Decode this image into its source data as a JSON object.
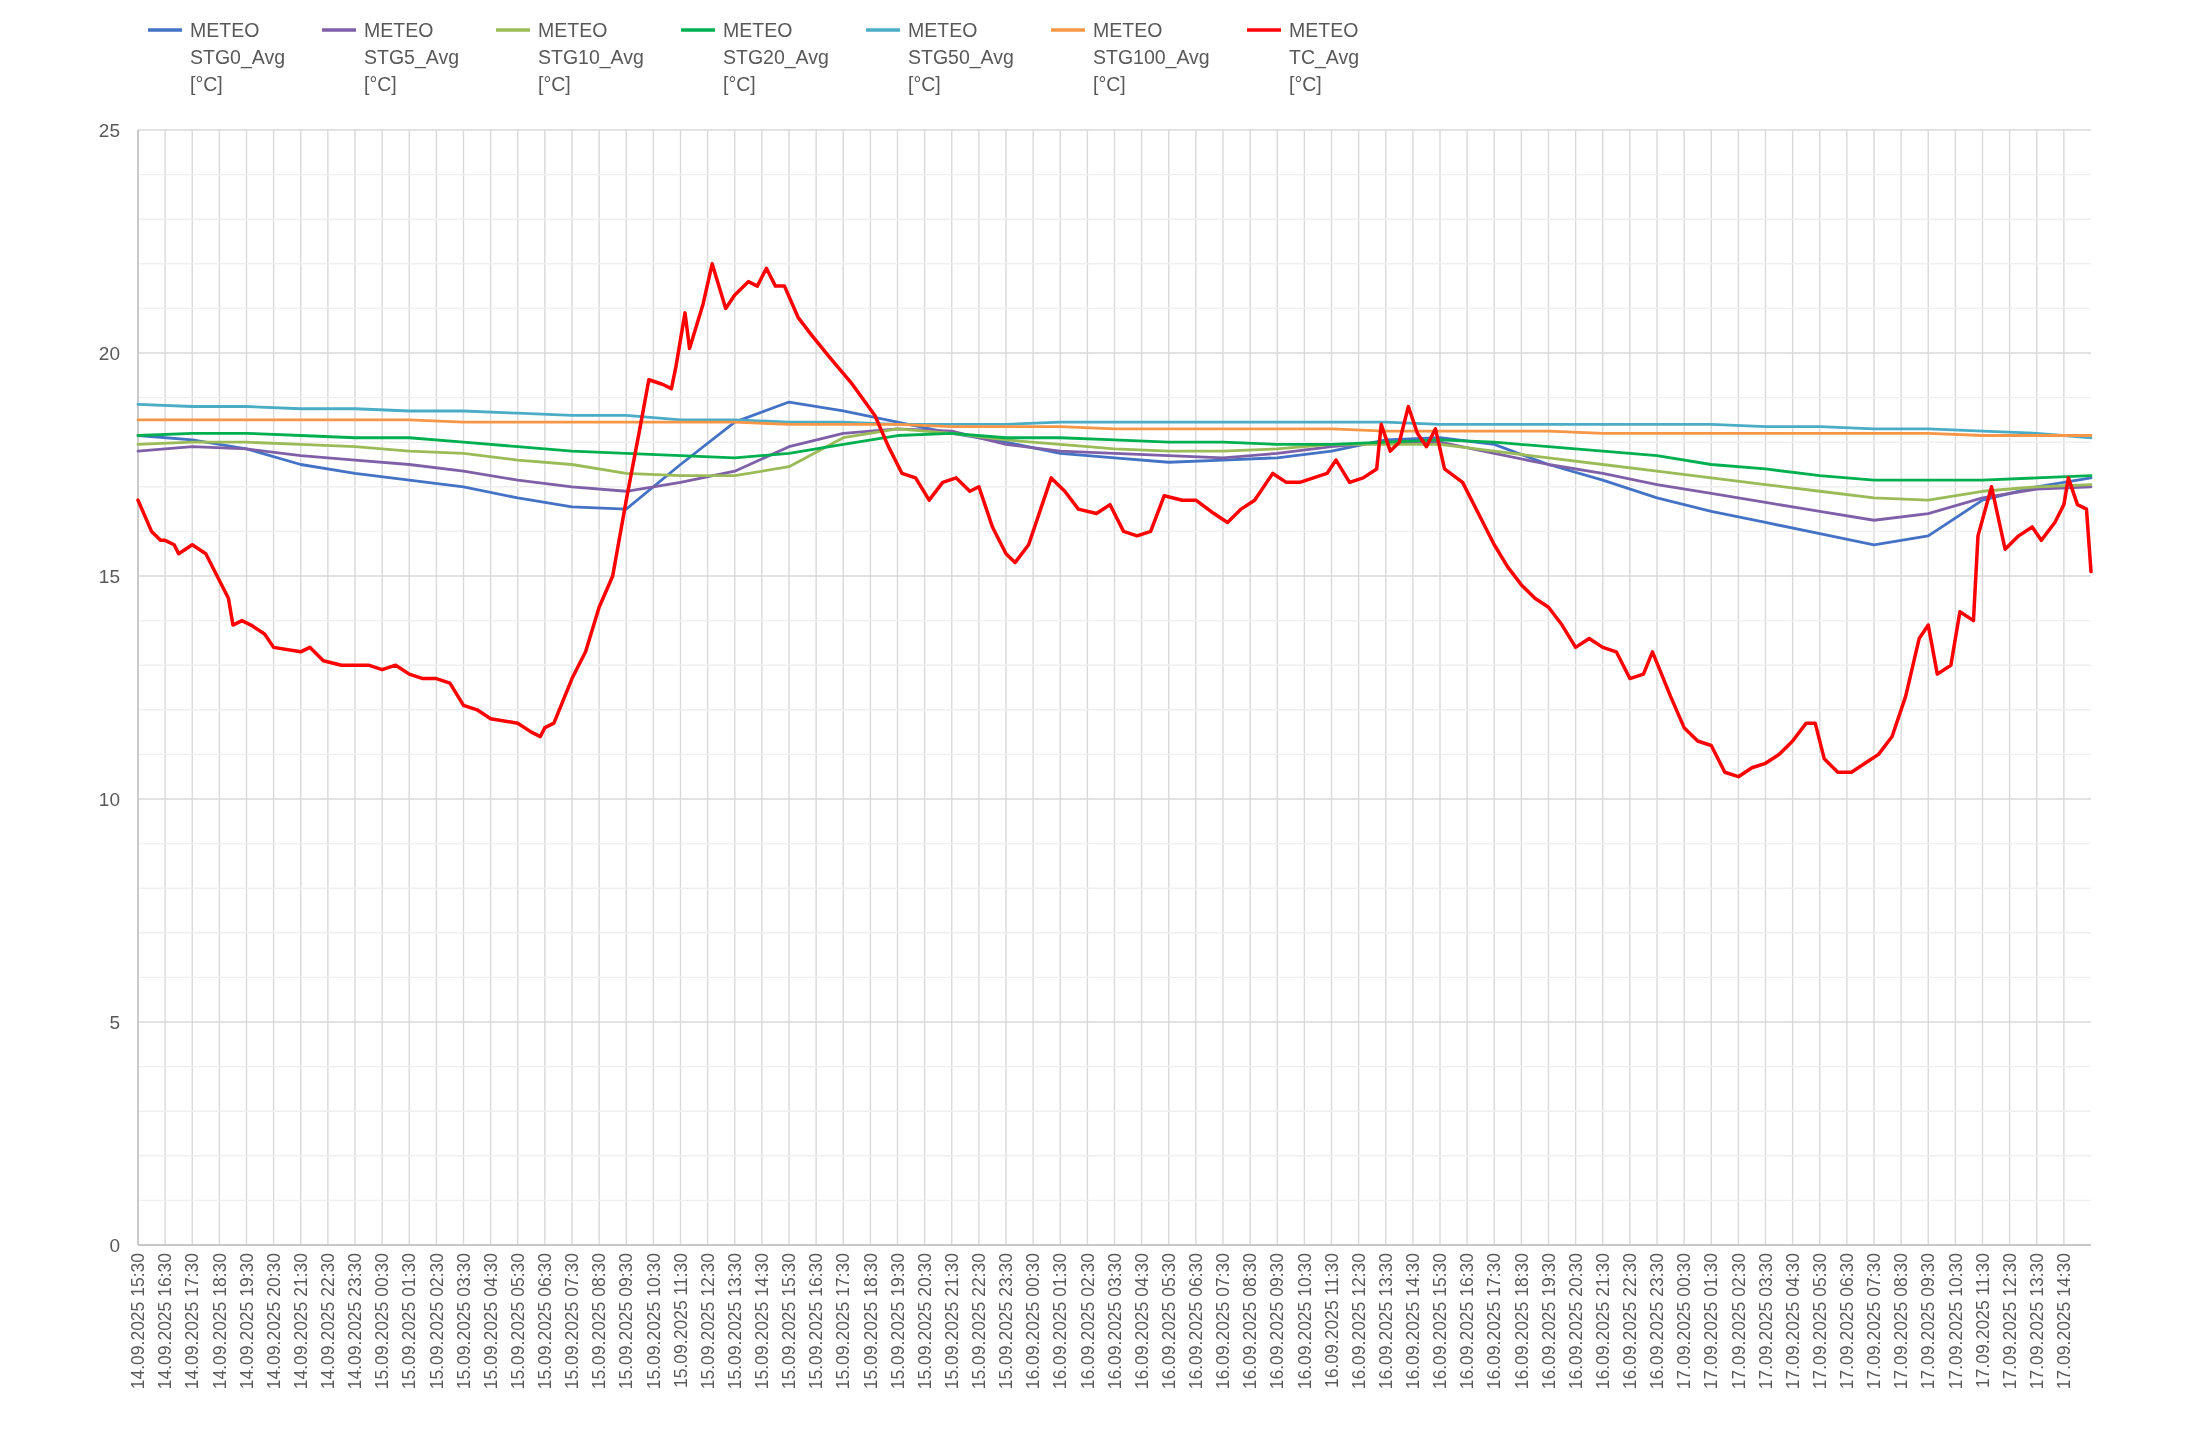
{
  "chart_data": {
    "type": "line",
    "grid": true,
    "legend": "top",
    "xlim": [
      "2025-09-14T15:30",
      "2025-09-17T15:30"
    ],
    "ylim": [
      0,
      25
    ],
    "yticks": [
      0,
      {
        "value": 1,
        "label": null
      },
      {
        "value": 2,
        "label": null
      },
      {
        "value": 3,
        "label": null
      },
      {
        "value": 4,
        "label": null
      },
      5,
      {
        "value": 6,
        "label": null
      },
      {
        "value": 7,
        "label": null
      },
      {
        "value": 8,
        "label": null
      },
      {
        "value": 9,
        "label": null
      },
      10,
      {
        "value": 11,
        "label": null
      },
      {
        "value": 12,
        "label": null
      },
      {
        "value": 13,
        "label": null
      },
      {
        "value": 14,
        "label": null
      },
      15,
      {
        "value": 16,
        "label": null
      },
      {
        "value": 17,
        "label": null
      },
      {
        "value": 18,
        "label": null
      },
      {
        "value": 19,
        "label": null
      },
      20,
      {
        "value": 21,
        "label": null
      },
      {
        "value": 22,
        "label": null
      },
      {
        "value": 23,
        "label": null
      },
      {
        "value": 24,
        "label": null
      },
      25
    ],
    "xticks": [
      {
        "value": "2025-09-14T15:30",
        "label": "14.09.2025 15:30"
      },
      {
        "value": "2025-09-14T16:30",
        "label": "14.09.2025 16:30"
      },
      {
        "value": "2025-09-14T17:30",
        "label": "14.09.2025 17:30"
      },
      {
        "value": "2025-09-14T18:30",
        "label": "14.09.2025 18:30"
      },
      {
        "value": "2025-09-14T19:30",
        "label": "14.09.2025 19:30"
      },
      {
        "value": "2025-09-14T20:30",
        "label": "14.09.2025 20:30"
      },
      {
        "value": "2025-09-14T21:30",
        "label": "14.09.2025 21:30"
      },
      {
        "value": "2025-09-14T22:30",
        "label": "14.09.2025 22:30"
      },
      {
        "value": "2025-09-14T23:30",
        "label": "14.09.2025 23:30"
      },
      {
        "value": "2025-09-15T00:30",
        "label": "15.09.2025 00:30"
      },
      {
        "value": "2025-09-15T01:30",
        "label": "15.09.2025 01:30"
      },
      {
        "value": "2025-09-15T02:30",
        "label": "15.09.2025 02:30"
      },
      {
        "value": "2025-09-15T03:30",
        "label": "15.09.2025 03:30"
      },
      {
        "value": "2025-09-15T04:30",
        "label": "15.09.2025 04:30"
      },
      {
        "value": "2025-09-15T05:30",
        "label": "15.09.2025 05:30"
      },
      {
        "value": "2025-09-15T06:30",
        "label": "15.09.2025 06:30"
      },
      {
        "value": "2025-09-15T07:30",
        "label": "15.09.2025 07:30"
      },
      {
        "value": "2025-09-15T08:30",
        "label": "15.09.2025 08:30"
      },
      {
        "value": "2025-09-15T09:30",
        "label": "15.09.2025 09:30"
      },
      {
        "value": "2025-09-15T10:30",
        "label": "15.09.2025 10:30"
      },
      {
        "value": "2025-09-15T11:30",
        "label": "15.09.2025 11:30"
      },
      {
        "value": "2025-09-15T12:30",
        "label": "15.09.2025 12:30"
      },
      {
        "value": "2025-09-15T13:30",
        "label": "15.09.2025 13:30"
      },
      {
        "value": "2025-09-15T14:30",
        "label": "15.09.2025 14:30"
      },
      {
        "value": "2025-09-15T15:30",
        "label": "15.09.2025 15:30"
      },
      {
        "value": "2025-09-15T16:30",
        "label": "15.09.2025 16:30"
      },
      {
        "value": "2025-09-15T17:30",
        "label": "15.09.2025 17:30"
      },
      {
        "value": "2025-09-15T18:30",
        "label": "15.09.2025 18:30"
      },
      {
        "value": "2025-09-15T19:30",
        "label": "15.09.2025 19:30"
      },
      {
        "value": "2025-09-15T20:30",
        "label": "15.09.2025 20:30"
      },
      {
        "value": "2025-09-15T21:30",
        "label": "15.09.2025 21:30"
      },
      {
        "value": "2025-09-15T22:30",
        "label": "15.09.2025 22:30"
      },
      {
        "value": "2025-09-15T23:30",
        "label": "15.09.2025 23:30"
      },
      {
        "value": "2025-09-16T00:30",
        "label": "16.09.2025 00:30"
      },
      {
        "value": "2025-09-16T01:30",
        "label": "16.09.2025 01:30"
      },
      {
        "value": "2025-09-16T02:30",
        "label": "16.09.2025 02:30"
      },
      {
        "value": "2025-09-16T03:30",
        "label": "16.09.2025 03:30"
      },
      {
        "value": "2025-09-16T04:30",
        "label": "16.09.2025 04:30"
      },
      {
        "value": "2025-09-16T05:30",
        "label": "16.09.2025 05:30"
      },
      {
        "value": "2025-09-16T06:30",
        "label": "16.09.2025 06:30"
      },
      {
        "value": "2025-09-16T07:30",
        "label": "16.09.2025 07:30"
      },
      {
        "value": "2025-09-16T08:30",
        "label": "16.09.2025 08:30"
      },
      {
        "value": "2025-09-16T09:30",
        "label": "16.09.2025 09:30"
      },
      {
        "value": "2025-09-16T10:30",
        "label": "16.09.2025 10:30"
      },
      {
        "value": "2025-09-16T11:30",
        "label": "16.09.2025 11:30"
      },
      {
        "value": "2025-09-16T12:30",
        "label": "16.09.2025 12:30"
      },
      {
        "value": "2025-09-16T13:30",
        "label": "16.09.2025 13:30"
      },
      {
        "value": "2025-09-16T14:30",
        "label": "16.09.2025 14:30"
      },
      {
        "value": "2025-09-16T15:30",
        "label": "16.09.2025 15:30"
      },
      {
        "value": "2025-09-16T16:30",
        "label": "16.09.2025 16:30"
      },
      {
        "value": "2025-09-16T17:30",
        "label": "16.09.2025 17:30"
      },
      {
        "value": "2025-09-16T18:30",
        "label": "16.09.2025 18:30"
      },
      {
        "value": "2025-09-16T19:30",
        "label": "16.09.2025 19:30"
      },
      {
        "value": "2025-09-16T20:30",
        "label": "16.09.2025 20:30"
      },
      {
        "value": "2025-09-16T21:30",
        "label": "16.09.2025 21:30"
      },
      {
        "value": "2025-09-16T22:30",
        "label": "16.09.2025 22:30"
      },
      {
        "value": "2025-09-16T23:30",
        "label": "16.09.2025 23:30"
      },
      {
        "value": "2025-09-17T00:30",
        "label": "17.09.2025 00:30"
      },
      {
        "value": "2025-09-17T01:30",
        "label": "17.09.2025 01:30"
      },
      {
        "value": "2025-09-17T02:30",
        "label": "17.09.2025 02:30"
      },
      {
        "value": "2025-09-17T03:30",
        "label": "17.09.2025 03:30"
      },
      {
        "value": "2025-09-17T04:30",
        "label": "17.09.2025 04:30"
      },
      {
        "value": "2025-09-17T05:30",
        "label": "17.09.2025 05:30"
      },
      {
        "value": "2025-09-17T06:30",
        "label": "17.09.2025 06:30"
      },
      {
        "value": "2025-09-17T07:30",
        "label": "17.09.2025 07:30"
      },
      {
        "value": "2025-09-17T08:30",
        "label": "17.09.2025 08:30"
      },
      {
        "value": "2025-09-17T09:30",
        "label": "17.09.2025 09:30"
      },
      {
        "value": "2025-09-17T10:30",
        "label": "17.09.2025 10:30"
      },
      {
        "value": "2025-09-17T11:30",
        "label": "17.09.2025 11:30"
      },
      {
        "value": "2025-09-17T12:30",
        "label": "17.09.2025 12:30"
      },
      {
        "value": "2025-09-17T13:30",
        "label": "17.09.2025 13:30"
      },
      {
        "value": "2025-09-17T14:30",
        "label": "17.09.2025 14:30"
      }
    ],
    "x": [
      "2025-09-14T15:30",
      "2025-09-14T17:30",
      "2025-09-14T19:30",
      "2025-09-14T21:30",
      "2025-09-14T23:30",
      "2025-09-15T01:30",
      "2025-09-15T03:30",
      "2025-09-15T05:30",
      "2025-09-15T07:30",
      "2025-09-15T09:30",
      "2025-09-15T11:30",
      "2025-09-15T13:30",
      "2025-09-15T15:30",
      "2025-09-15T17:30",
      "2025-09-15T19:30",
      "2025-09-15T21:30",
      "2025-09-15T23:30",
      "2025-09-16T01:30",
      "2025-09-16T03:30",
      "2025-09-16T05:30",
      "2025-09-16T07:30",
      "2025-09-16T09:30",
      "2025-09-16T11:30",
      "2025-09-16T13:30",
      "2025-09-16T15:30",
      "2025-09-16T17:30",
      "2025-09-16T19:30",
      "2025-09-16T21:30",
      "2025-09-16T23:30",
      "2025-09-17T01:30",
      "2025-09-17T03:30",
      "2025-09-17T05:30",
      "2025-09-17T07:30",
      "2025-09-17T09:30",
      "2025-09-17T11:30",
      "2025-09-17T13:30",
      "2025-09-17T15:30"
    ],
    "series": [
      {
        "name": "METEO STG0_Avg [°C]",
        "color": "#4472c4",
        "values": [
          18.15,
          18.05,
          17.85,
          17.5,
          17.3,
          17.15,
          17.0,
          16.75,
          16.55,
          16.5,
          17.5,
          18.45,
          18.9,
          18.7,
          18.45,
          18.2,
          18.0,
          17.75,
          17.65,
          17.55,
          17.6,
          17.65,
          17.8,
          18.05,
          18.1,
          17.95,
          17.5,
          17.15,
          16.75,
          16.45,
          16.2,
          15.95,
          15.7,
          15.9,
          16.7,
          17.0,
          17.2
        ]
      },
      {
        "name": "METEO STG5_Avg [°C]",
        "color": "#7f60a8",
        "values": [
          17.8,
          17.9,
          17.85,
          17.7,
          17.6,
          17.5,
          17.35,
          17.15,
          17.0,
          16.9,
          17.1,
          17.35,
          17.9,
          18.2,
          18.3,
          18.25,
          17.95,
          17.8,
          17.75,
          17.7,
          17.65,
          17.75,
          17.9,
          18.0,
          18.0,
          17.75,
          17.5,
          17.3,
          17.05,
          16.85,
          16.65,
          16.45,
          16.25,
          16.4,
          16.75,
          16.95,
          17.0
        ]
      },
      {
        "name": "METEO STG10_Avg [°C]",
        "color": "#9bbb59",
        "values": [
          17.95,
          18.0,
          18.0,
          17.95,
          17.9,
          17.8,
          17.75,
          17.6,
          17.5,
          17.3,
          17.25,
          17.25,
          17.45,
          18.1,
          18.3,
          18.2,
          18.05,
          17.95,
          17.85,
          17.8,
          17.8,
          17.85,
          17.95,
          17.95,
          17.95,
          17.8,
          17.65,
          17.5,
          17.35,
          17.2,
          17.05,
          16.9,
          16.75,
          16.7,
          16.9,
          17.0,
          17.05
        ]
      },
      {
        "name": "METEO STG20_Avg [°C]",
        "color": "#00b050",
        "values": [
          18.15,
          18.2,
          18.2,
          18.15,
          18.1,
          18.1,
          18.0,
          17.9,
          17.8,
          17.75,
          17.7,
          17.65,
          17.75,
          17.95,
          18.15,
          18.2,
          18.1,
          18.1,
          18.05,
          18.0,
          18.0,
          17.95,
          17.95,
          18.0,
          18.05,
          18.0,
          17.9,
          17.8,
          17.7,
          17.5,
          17.4,
          17.25,
          17.15,
          17.15,
          17.15,
          17.2,
          17.25
        ]
      },
      {
        "name": "METEO STG50_Avg [°C]",
        "color": "#4bacc6",
        "values": [
          18.85,
          18.8,
          18.8,
          18.75,
          18.75,
          18.7,
          18.7,
          18.65,
          18.6,
          18.6,
          18.5,
          18.5,
          18.45,
          18.45,
          18.4,
          18.4,
          18.4,
          18.45,
          18.45,
          18.45,
          18.45,
          18.45,
          18.45,
          18.45,
          18.4,
          18.4,
          18.4,
          18.4,
          18.4,
          18.4,
          18.35,
          18.35,
          18.3,
          18.3,
          18.25,
          18.2,
          18.1
        ]
      },
      {
        "name": "METEO STG100_Avg [°C]",
        "color": "#f79646",
        "values": [
          18.5,
          18.5,
          18.5,
          18.5,
          18.5,
          18.5,
          18.45,
          18.45,
          18.45,
          18.45,
          18.45,
          18.45,
          18.4,
          18.4,
          18.4,
          18.35,
          18.35,
          18.35,
          18.3,
          18.3,
          18.3,
          18.3,
          18.3,
          18.25,
          18.25,
          18.25,
          18.25,
          18.2,
          18.2,
          18.2,
          18.2,
          18.2,
          18.2,
          18.2,
          18.15,
          18.15,
          18.15
        ]
      },
      {
        "name": "METEO TC_Avg [°C]",
        "color": "#ff0000",
        "x": [
          "2025-09-14T15:30",
          "2025-09-14T16:00",
          "2025-09-14T16:20",
          "2025-09-14T16:30",
          "2025-09-14T16:50",
          "2025-09-14T17:00",
          "2025-09-14T17:30",
          "2025-09-14T18:00",
          "2025-09-14T18:30",
          "2025-09-14T18:50",
          "2025-09-14T19:00",
          "2025-09-14T19:20",
          "2025-09-14T19:40",
          "2025-09-14T20:10",
          "2025-09-14T20:30",
          "2025-09-14T21:30",
          "2025-09-14T21:50",
          "2025-09-14T22:20",
          "2025-09-14T23:00",
          "2025-09-14T23:30",
          "2025-09-15T00:00",
          "2025-09-15T00:30",
          "2025-09-15T01:00",
          "2025-09-15T01:30",
          "2025-09-15T02:00",
          "2025-09-15T02:30",
          "2025-09-15T03:00",
          "2025-09-15T03:30",
          "2025-09-15T04:00",
          "2025-09-15T04:30",
          "2025-09-15T05:30",
          "2025-09-15T06:00",
          "2025-09-15T06:20",
          "2025-09-15T06:30",
          "2025-09-15T06:50",
          "2025-09-15T07:10",
          "2025-09-15T07:30",
          "2025-09-15T08:00",
          "2025-09-15T08:30",
          "2025-09-15T09:00",
          "2025-09-15T09:30",
          "2025-09-15T10:00",
          "2025-09-15T10:20",
          "2025-09-15T10:50",
          "2025-09-15T11:10",
          "2025-09-15T11:20",
          "2025-09-15T11:40",
          "2025-09-15T11:50",
          "2025-09-15T12:20",
          "2025-09-15T12:40",
          "2025-09-15T13:10",
          "2025-09-15T13:30",
          "2025-09-15T14:00",
          "2025-09-15T14:20",
          "2025-09-15T14:40",
          "2025-09-15T15:00",
          "2025-09-15T15:20",
          "2025-09-15T15:50",
          "2025-09-15T16:20",
          "2025-09-15T17:00",
          "2025-09-15T17:50",
          "2025-09-15T18:40",
          "2025-09-15T19:10",
          "2025-09-15T19:40",
          "2025-09-15T20:10",
          "2025-09-15T20:40",
          "2025-09-15T21:10",
          "2025-09-15T21:40",
          "2025-09-15T22:10",
          "2025-09-15T22:30",
          "2025-09-15T23:00",
          "2025-09-15T23:30",
          "2025-09-15T23:50",
          "2025-09-16T00:20",
          "2025-09-16T00:50",
          "2025-09-16T01:10",
          "2025-09-16T01:40",
          "2025-09-16T02:10",
          "2025-09-16T02:50",
          "2025-09-16T03:20",
          "2025-09-16T03:50",
          "2025-09-16T04:20",
          "2025-09-16T04:50",
          "2025-09-16T05:20",
          "2025-09-16T06:00",
          "2025-09-16T06:30",
          "2025-09-16T07:10",
          "2025-09-16T07:40",
          "2025-09-16T08:10",
          "2025-09-16T08:40",
          "2025-09-16T09:20",
          "2025-09-16T09:50",
          "2025-09-16T10:20",
          "2025-09-16T10:50",
          "2025-09-16T11:20",
          "2025-09-16T11:40",
          "2025-09-16T12:10",
          "2025-09-16T12:40",
          "2025-09-16T13:10",
          "2025-09-16T13:20",
          "2025-09-16T13:40",
          "2025-09-16T14:00",
          "2025-09-16T14:20",
          "2025-09-16T14:40",
          "2025-09-16T15:00",
          "2025-09-16T15:20",
          "2025-09-16T15:40",
          "2025-09-16T16:20",
          "2025-09-16T17:00",
          "2025-09-16T17:30",
          "2025-09-16T18:00",
          "2025-09-16T18:30",
          "2025-09-16T19:00",
          "2025-09-16T19:30",
          "2025-09-16T20:00",
          "2025-09-16T20:30",
          "2025-09-16T21:00",
          "2025-09-16T21:30",
          "2025-09-16T22:00",
          "2025-09-16T22:30",
          "2025-09-16T23:00",
          "2025-09-16T23:20",
          "2025-09-17T00:00",
          "2025-09-17T00:30",
          "2025-09-17T01:00",
          "2025-09-17T01:30",
          "2025-09-17T02:00",
          "2025-09-17T02:30",
          "2025-09-17T03:00",
          "2025-09-17T03:30",
          "2025-09-17T04:00",
          "2025-09-17T04:30",
          "2025-09-17T05:00",
          "2025-09-17T05:20",
          "2025-09-17T05:40",
          "2025-09-17T06:10",
          "2025-09-17T06:40",
          "2025-09-17T07:10",
          "2025-09-17T07:40",
          "2025-09-17T08:10",
          "2025-09-17T08:40",
          "2025-09-17T09:10",
          "2025-09-17T09:30",
          "2025-09-17T09:50",
          "2025-09-17T10:20",
          "2025-09-17T10:40",
          "2025-09-17T11:10",
          "2025-09-17T11:20",
          "2025-09-17T11:50",
          "2025-09-17T12:20",
          "2025-09-17T12:50",
          "2025-09-17T13:20",
          "2025-09-17T13:40",
          "2025-09-17T14:10",
          "2025-09-17T14:30",
          "2025-09-17T14:40",
          "2025-09-17T15:00",
          "2025-09-17T15:20",
          "2025-09-17T15:30"
        ],
        "values": [
          16.7,
          16.0,
          15.8,
          15.8,
          15.7,
          15.5,
          15.7,
          15.5,
          14.9,
          14.5,
          13.9,
          14.0,
          13.9,
          13.7,
          13.4,
          13.3,
          13.4,
          13.1,
          13.0,
          13.0,
          13.0,
          12.9,
          13.0,
          12.8,
          12.7,
          12.7,
          12.6,
          12.1,
          12.0,
          11.8,
          11.7,
          11.5,
          11.4,
          11.6,
          11.7,
          12.2,
          12.7,
          13.3,
          14.3,
          15.0,
          16.7,
          18.3,
          19.4,
          19.3,
          19.2,
          19.7,
          20.9,
          20.1,
          21.1,
          22.0,
          21.0,
          21.3,
          21.6,
          21.5,
          21.9,
          21.5,
          21.5,
          20.8,
          20.4,
          19.9,
          19.3,
          18.6,
          17.9,
          17.3,
          17.2,
          16.7,
          17.1,
          17.2,
          16.9,
          17.0,
          16.1,
          15.5,
          15.3,
          15.7,
          16.6,
          17.2,
          16.9,
          16.5,
          16.4,
          16.6,
          16.0,
          15.9,
          16.0,
          16.8,
          16.7,
          16.7,
          16.4,
          16.2,
          16.5,
          16.7,
          17.3,
          17.1,
          17.1,
          17.2,
          17.3,
          17.6,
          17.1,
          17.2,
          17.4,
          18.4,
          17.8,
          18.0,
          18.8,
          18.2,
          17.9,
          18.3,
          17.4,
          17.1,
          16.3,
          15.7,
          15.2,
          14.8,
          14.5,
          14.3,
          13.9,
          13.4,
          13.6,
          13.4,
          13.3,
          12.7,
          12.8,
          13.3,
          12.3,
          11.6,
          11.3,
          11.2,
          10.6,
          10.5,
          10.7,
          10.8,
          11.0,
          11.3,
          11.7,
          11.7,
          10.9,
          10.6,
          10.6,
          10.8,
          11.0,
          11.4,
          12.3,
          13.6,
          13.9,
          12.8,
          13.0,
          14.2,
          14.0,
          15.9,
          17.0,
          15.6,
          15.9,
          16.1,
          15.8,
          16.2,
          16.6,
          17.2,
          16.6,
          16.5,
          15.1
        ]
      }
    ]
  }
}
